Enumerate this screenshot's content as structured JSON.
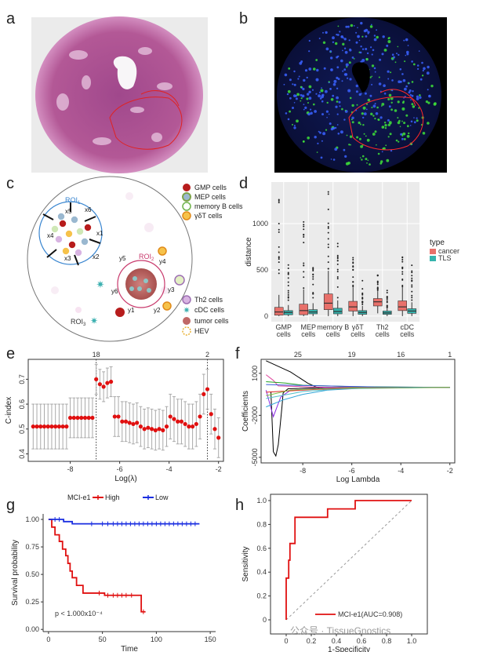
{
  "panel_labels": {
    "a": "a",
    "b": "b",
    "c": "c",
    "d": "d",
    "e": "e",
    "f": "f",
    "g": "g",
    "h": "h"
  },
  "watermark": "公众号 · TissueGnostics",
  "colors": {
    "cancer": "#e8706a",
    "tls": "#35b3ad",
    "red": "#e01010",
    "blue": "#1a2ee0",
    "he_bg": "#b4579a",
    "if_bg": "#07081e"
  },
  "schematic": {
    "roi1": "ROI",
    "roi1_sub": "1",
    "roi2": "ROI",
    "roi2_sub": "2",
    "roi3": "ROI",
    "roi3_sub": "3",
    "x_labels": [
      "x1",
      "x2",
      "x3",
      "x4",
      "x5",
      "x6"
    ],
    "y_labels": [
      "y1",
      "y2",
      "y3",
      "y4",
      "y5",
      "y6"
    ],
    "legend_top": [
      "GMP cells",
      "MEP cells",
      "memory B cells",
      "γδT cells"
    ],
    "legend_bottom": [
      "Th2 cells",
      "cDC cells",
      "tumor cells",
      "HEV"
    ]
  },
  "chart_data": [
    {
      "id": "d",
      "type": "box",
      "ylabel": "distance",
      "categories": [
        "GMP\ncells",
        "MEP\ncells",
        "memory B\ncells",
        "γδT\ncells",
        "Th2\ncells",
        "cDC\ncells"
      ],
      "yticks": [
        0,
        500,
        1000
      ],
      "ylim": [
        -60,
        1450
      ],
      "legend_title": "type",
      "series": [
        {
          "name": "cancer",
          "boxes": [
            [
              0,
              10,
              45,
              95,
              230
            ],
            [
              0,
              15,
              60,
              130,
              290
            ],
            [
              0,
              70,
              140,
              240,
              490
            ],
            [
              0,
              55,
              100,
              160,
              310
            ],
            [
              30,
              110,
              155,
              190,
              270
            ],
            [
              0,
              60,
              100,
              165,
              310
            ]
          ]
        },
        {
          "name": "TLS",
          "boxes": [
            [
              0,
              15,
              40,
              60,
              120
            ],
            [
              0,
              25,
              45,
              70,
              140
            ],
            [
              0,
              25,
              50,
              85,
              170
            ],
            [
              0,
              20,
              40,
              60,
              110
            ],
            [
              0,
              20,
              35,
              55,
              95
            ],
            [
              0,
              30,
              55,
              80,
              150
            ]
          ]
        }
      ]
    },
    {
      "id": "e",
      "type": "errorbar",
      "xlabel": "Log(λ)",
      "ylabel": "C-index",
      "xticks": [
        -8,
        -6,
        -4,
        -2
      ],
      "yticks": [
        0.4,
        0.5,
        0.6,
        0.7
      ],
      "xlim": [
        -9.7,
        -1.8
      ],
      "ylim": [
        0.37,
        0.78
      ],
      "top_ticks": [
        "18",
        "2"
      ],
      "top_tick_x": [
        -6.95,
        -2.45
      ],
      "vlines": [
        -6.95,
        -2.45
      ],
      "points": [
        [
          -9.5,
          0.51,
          0.09
        ],
        [
          -9.35,
          0.51,
          0.09
        ],
        [
          -9.2,
          0.51,
          0.09
        ],
        [
          -9.05,
          0.51,
          0.09
        ],
        [
          -8.9,
          0.51,
          0.09
        ],
        [
          -8.75,
          0.51,
          0.09
        ],
        [
          -8.6,
          0.51,
          0.09
        ],
        [
          -8.45,
          0.51,
          0.09
        ],
        [
          -8.3,
          0.51,
          0.09
        ],
        [
          -8.15,
          0.51,
          0.09
        ],
        [
          -8.0,
          0.545,
          0.08
        ],
        [
          -7.85,
          0.545,
          0.08
        ],
        [
          -7.7,
          0.545,
          0.08
        ],
        [
          -7.55,
          0.545,
          0.08
        ],
        [
          -7.4,
          0.545,
          0.08
        ],
        [
          -7.25,
          0.545,
          0.08
        ],
        [
          -7.1,
          0.545,
          0.08
        ],
        [
          -6.95,
          0.7,
          0.06
        ],
        [
          -6.8,
          0.68,
          0.06
        ],
        [
          -6.65,
          0.67,
          0.06
        ],
        [
          -6.5,
          0.685,
          0.06
        ],
        [
          -6.35,
          0.69,
          0.06
        ],
        [
          -6.2,
          0.55,
          0.08
        ],
        [
          -6.05,
          0.55,
          0.08
        ],
        [
          -5.9,
          0.53,
          0.08
        ],
        [
          -5.75,
          0.53,
          0.08
        ],
        [
          -5.6,
          0.525,
          0.08
        ],
        [
          -5.45,
          0.52,
          0.08
        ],
        [
          -5.3,
          0.525,
          0.08
        ],
        [
          -5.15,
          0.51,
          0.08
        ],
        [
          -5.0,
          0.5,
          0.08
        ],
        [
          -4.85,
          0.505,
          0.08
        ],
        [
          -4.7,
          0.5,
          0.08
        ],
        [
          -4.55,
          0.495,
          0.08
        ],
        [
          -4.4,
          0.5,
          0.08
        ],
        [
          -4.25,
          0.495,
          0.08
        ],
        [
          -4.1,
          0.51,
          0.08
        ],
        [
          -3.95,
          0.55,
          0.09
        ],
        [
          -3.8,
          0.54,
          0.09
        ],
        [
          -3.65,
          0.53,
          0.09
        ],
        [
          -3.5,
          0.53,
          0.09
        ],
        [
          -3.35,
          0.52,
          0.09
        ],
        [
          -3.2,
          0.51,
          0.09
        ],
        [
          -3.05,
          0.51,
          0.09
        ],
        [
          -2.9,
          0.52,
          0.09
        ],
        [
          -2.75,
          0.55,
          0.09
        ],
        [
          -2.6,
          0.64,
          0.08
        ],
        [
          -2.45,
          0.66,
          0.08
        ],
        [
          -2.3,
          0.56,
          0.08
        ],
        [
          -2.15,
          0.5,
          0.08
        ],
        [
          -2.0,
          0.465,
          0.08
        ]
      ]
    },
    {
      "id": "f",
      "type": "line",
      "xlabel": "Log Lambda",
      "ylabel": "Coefficients",
      "xticks": [
        -8,
        -6,
        -4,
        -2
      ],
      "yticks": [
        -5000,
        -2000,
        1000
      ],
      "xlim": [
        -9.7,
        -1.8
      ],
      "ylim": [
        -5400,
        2000
      ],
      "top_ticks": [
        "25",
        "19",
        "16",
        "1"
      ],
      "top_tick_x": [
        -8.2,
        -6.0,
        -4.0,
        -2.0
      ],
      "series": [
        {
          "color": "#000000",
          "points": [
            [
              -9.5,
              1900
            ],
            [
              -8.5,
              1100
            ],
            [
              -7.8,
              300
            ],
            [
              -7.3,
              -100
            ],
            [
              -6.5,
              0
            ],
            [
              -2,
              0
            ]
          ]
        },
        {
          "color": "#000000",
          "points": [
            [
              -9.3,
              -300
            ],
            [
              -9.25,
              -2500
            ],
            [
              -9.2,
              -4600
            ],
            [
              -9.1,
              -4900
            ],
            [
              -9.0,
              -4100
            ],
            [
              -8.85,
              -1400
            ],
            [
              -8.8,
              -400
            ],
            [
              -8.6,
              -100
            ],
            [
              -7,
              0
            ],
            [
              -2,
              0
            ]
          ]
        },
        {
          "color": "#e0479e",
          "points": [
            [
              -9.5,
              900
            ],
            [
              -9.2,
              500
            ],
            [
              -9.0,
              100
            ],
            [
              -7,
              0
            ],
            [
              -2,
              0
            ]
          ]
        },
        {
          "color": "#8a2be2",
          "points": [
            [
              -9.5,
              -200
            ],
            [
              -9.2,
              -2100
            ],
            [
              -9.05,
              -1400
            ],
            [
              -8.9,
              -700
            ],
            [
              -8.5,
              -200
            ],
            [
              -7,
              -50
            ],
            [
              -2,
              0
            ]
          ]
        },
        {
          "color": "#2fa5d8",
          "points": [
            [
              -9.5,
              -1400
            ],
            [
              -8.8,
              -900
            ],
            [
              -8.0,
              -500
            ],
            [
              -7,
              -200
            ],
            [
              -5.5,
              -50
            ],
            [
              -2,
              0
            ]
          ]
        },
        {
          "color": "#56c2c9",
          "points": [
            [
              -9.5,
              -800
            ],
            [
              -8.9,
              -600
            ],
            [
              -8.0,
              -300
            ],
            [
              -6.5,
              -100
            ],
            [
              -2,
              0
            ]
          ]
        },
        {
          "color": "#22a022",
          "points": [
            [
              -9.5,
              400
            ],
            [
              -8.7,
              300
            ],
            [
              -8.0,
              150
            ],
            [
              -6,
              50
            ],
            [
              -2,
              0
            ]
          ]
        },
        {
          "color": "#e02020",
          "points": [
            [
              -9.5,
              -350
            ],
            [
              -8.5,
              -250
            ],
            [
              -7.5,
              -150
            ],
            [
              -6,
              -50
            ],
            [
              -2,
              0
            ]
          ]
        },
        {
          "color": "#3b5bdb",
          "points": [
            [
              -9.5,
              200
            ],
            [
              -8.5,
              150
            ],
            [
              -7.0,
              100
            ],
            [
              -5,
              20
            ],
            [
              -2,
              0
            ]
          ]
        },
        {
          "color": "#7fbf3f",
          "points": [
            [
              -9.5,
              -600
            ],
            [
              -8.5,
              -200
            ],
            [
              -7.5,
              -120
            ],
            [
              -6,
              -40
            ],
            [
              -2,
              0
            ]
          ]
        }
      ]
    },
    {
      "id": "g",
      "type": "survival",
      "xlabel": "Time",
      "ylabel": "Survival probability",
      "xticks": [
        0,
        50,
        100,
        150
      ],
      "yticks": [
        "0.00",
        "0.25",
        "0.50",
        "0.75",
        "1.00"
      ],
      "xlim": [
        -5,
        155
      ],
      "ylim": [
        -0.02,
        1.05
      ],
      "legend_title": "MCI-e1",
      "legend": [
        "High",
        "Low"
      ],
      "annotation": "p < 1.000x10⁻⁴",
      "series": [
        {
          "name": "High",
          "color": "#e01010",
          "steps": [
            [
              0,
              1.0
            ],
            [
              3,
              0.93
            ],
            [
              6,
              0.86
            ],
            [
              10,
              0.8
            ],
            [
              13,
              0.73
            ],
            [
              16,
              0.67
            ],
            [
              18,
              0.6
            ],
            [
              20,
              0.53
            ],
            [
              22,
              0.47
            ],
            [
              26,
              0.4
            ],
            [
              32,
              0.33
            ],
            [
              52,
              0.31
            ],
            [
              86,
              0.16
            ],
            [
              90,
              0.16
            ]
          ],
          "censor": [
            [
              47,
              0.33
            ],
            [
              55,
              0.31
            ],
            [
              60,
              0.31
            ],
            [
              64,
              0.31
            ],
            [
              68,
              0.31
            ],
            [
              72,
              0.31
            ],
            [
              77,
              0.31
            ],
            [
              88,
              0.16
            ]
          ]
        },
        {
          "name": "Low",
          "color": "#1a2ee0",
          "steps": [
            [
              0,
              1.0
            ],
            [
              14,
              1.0
            ],
            [
              14,
              0.98
            ],
            [
              22,
              0.98
            ],
            [
              22,
              0.96
            ],
            [
              140,
              0.96
            ]
          ],
          "censor": [
            [
              6,
              1
            ],
            [
              10,
              1
            ],
            [
              40,
              0.96
            ],
            [
              50,
              0.96
            ],
            [
              55,
              0.96
            ],
            [
              60,
              0.96
            ],
            [
              64,
              0.96
            ],
            [
              68,
              0.96
            ],
            [
              72,
              0.96
            ],
            [
              76,
              0.96
            ],
            [
              80,
              0.96
            ],
            [
              84,
              0.96
            ],
            [
              88,
              0.96
            ],
            [
              92,
              0.96
            ],
            [
              96,
              0.96
            ],
            [
              100,
              0.96
            ],
            [
              104,
              0.96
            ],
            [
              108,
              0.96
            ],
            [
              112,
              0.96
            ],
            [
              116,
              0.96
            ],
            [
              120,
              0.96
            ],
            [
              124,
              0.96
            ],
            [
              128,
              0.96
            ],
            [
              132,
              0.96
            ],
            [
              136,
              0.96
            ]
          ]
        }
      ]
    },
    {
      "id": "h",
      "type": "roc",
      "xlabel": "1-Specificity",
      "ylabel": "Sensitivity",
      "xticks": [
        "0",
        "0.2",
        "0.4",
        "0.6",
        "0.8",
        "1.0"
      ],
      "yticks": [
        "0",
        "0.2",
        "0.4",
        "0.6",
        "0.8",
        "1.0"
      ],
      "legend": "MCI-e1(AUC=0.908)",
      "points": [
        [
          0,
          0
        ],
        [
          0,
          0.35
        ],
        [
          0.02,
          0.35
        ],
        [
          0.02,
          0.5
        ],
        [
          0.03,
          0.5
        ],
        [
          0.03,
          0.64
        ],
        [
          0.07,
          0.64
        ],
        [
          0.07,
          0.86
        ],
        [
          0.33,
          0.86
        ],
        [
          0.33,
          0.93
        ],
        [
          0.55,
          0.93
        ],
        [
          0.55,
          1.0
        ],
        [
          1.0,
          1.0
        ]
      ]
    }
  ]
}
